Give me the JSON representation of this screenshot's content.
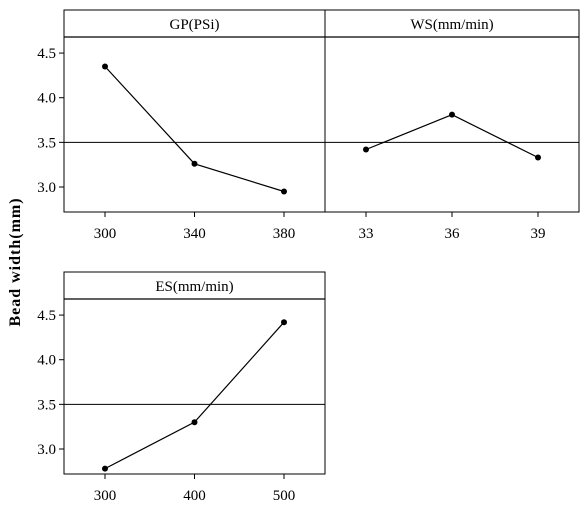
{
  "chart_data": {
    "type": "line",
    "ylabel": "Bead width(mm)",
    "mean_line": 3.5,
    "ylim": [
      2.72,
      4.68
    ],
    "y_ticks": [
      3.0,
      3.5,
      4.0,
      4.5
    ],
    "y_tick_labels": [
      "3.0",
      "3.5",
      "4.0",
      "4.5"
    ],
    "panels": [
      {
        "title": "GP(PSi)",
        "categories": [
          "300",
          "340",
          "380"
        ],
        "values": [
          4.35,
          3.26,
          2.95
        ]
      },
      {
        "title": "WS(mm/min)",
        "categories": [
          "33",
          "36",
          "39"
        ],
        "values": [
          3.42,
          3.81,
          3.33
        ]
      },
      {
        "title": "ES(mm/min)",
        "categories": [
          "300",
          "400",
          "500"
        ],
        "values": [
          2.78,
          3.3,
          4.42
        ]
      }
    ]
  },
  "colors": {
    "line": "#000000",
    "marker": "#000000",
    "frame": "#000000",
    "background": "#ffffff"
  }
}
